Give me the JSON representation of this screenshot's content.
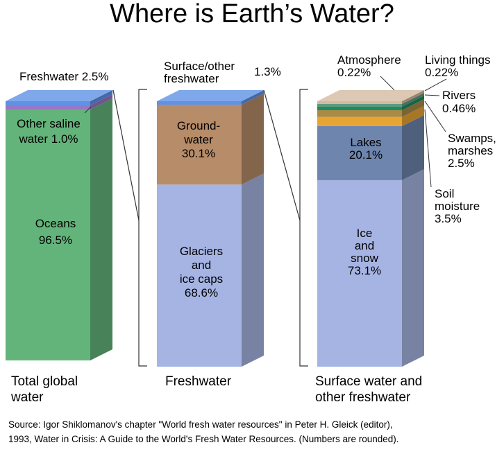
{
  "chart_data": {
    "type": "bar",
    "title": "Where is Earth’s Water?",
    "stacks": [
      {
        "category": "Total global water",
        "category_lines": [
          "Total global",
          "water"
        ],
        "segments": [
          {
            "name": "Oceans",
            "value": 96.5,
            "label_lines": [
              "Oceans",
              "96.5%"
            ],
            "color": "#63b47a"
          },
          {
            "name": "Other saline water",
            "value": 1.0,
            "label_lines": [
              "Other saline",
              "water 1.0%"
            ],
            "color": "#9a76c4"
          },
          {
            "name": "Freshwater",
            "value": 2.5,
            "label_lines": [
              "Freshwater 2.5%"
            ],
            "color": "#5f92e6"
          }
        ]
      },
      {
        "category": "Freshwater",
        "category_lines": [
          "Freshwater"
        ],
        "segments": [
          {
            "name": "Glaciers and ice caps",
            "value": 68.6,
            "label_lines": [
              "Glaciers",
              "and",
              "ice caps",
              "68.6%"
            ],
            "color": "#a6b4e3"
          },
          {
            "name": "Ground-water",
            "value": 30.1,
            "label_lines": [
              "Ground-",
              "water",
              "30.1%"
            ],
            "color": "#b68c69"
          },
          {
            "name": "Surface/other freshwater",
            "value": 1.3,
            "label_lines": [
              "Surface/other",
              "freshwater",
              "1.3%"
            ],
            "color": "#5f92e6"
          }
        ]
      },
      {
        "category": "Surface water and other freshwater",
        "category_lines": [
          "Surface water and",
          "other freshwater"
        ],
        "segments": [
          {
            "name": "Ice and snow",
            "value": 73.1,
            "label_lines": [
              "Ice",
              "and",
              "snow",
              "73.1%"
            ],
            "color": "#a6b4e3"
          },
          {
            "name": "Lakes",
            "value": 20.1,
            "label_lines": [
              "Lakes",
              "20.1%"
            ],
            "color": "#6e85ae"
          },
          {
            "name": "Soil moisture",
            "value": 3.5,
            "label_lines": [
              "Soil",
              "moisture",
              "3.5%"
            ],
            "color": "#e9a534"
          },
          {
            "name": "Swamps, marshes",
            "value": 2.5,
            "label_lines": [
              "Swamps,",
              "marshes",
              "2.5%"
            ],
            "color": "#a88b47"
          },
          {
            "name": "Rivers",
            "value": 0.46,
            "label_lines": [
              "Rivers",
              "0.46%"
            ],
            "color": "#1f8a63"
          },
          {
            "name": "Living things",
            "value": 0.22,
            "label_lines": [
              "Living things",
              "0.22%"
            ],
            "color": "#5b9c80"
          },
          {
            "name": "Atmosphere",
            "value": 0.22,
            "label_lines": [
              "Atmosphere",
              "0.22%"
            ],
            "color": "#d3baa0"
          }
        ]
      }
    ],
    "source_lines": [
      "Source: Igor Shiklomanov's chapter \"World fresh water resources\" in Peter H. Gleick (editor),",
      "1993, Water in Crisis: A Guide to the World's Fresh Water Resources. (Numbers are rounded)."
    ]
  }
}
